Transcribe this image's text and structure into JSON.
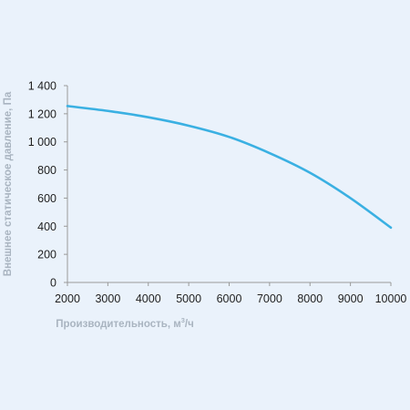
{
  "chart_data": {
    "type": "line",
    "xlabel": "Производительность, м",
    "xlabel_sup": "3",
    "xlabel_suffix": "/ч",
    "ylabel": "Внешнее статическое давление, Па",
    "xlim": [
      2000,
      10000
    ],
    "ylim": [
      0,
      1400
    ],
    "x_ticks": [
      2000,
      3000,
      4000,
      5000,
      6000,
      7000,
      8000,
      9000,
      10000
    ],
    "x_tick_labels": [
      "2000",
      "3000",
      "4000",
      "5000",
      "6000",
      "7000",
      "8000",
      "9000",
      "10000"
    ],
    "y_ticks": [
      0,
      200,
      400,
      600,
      800,
      1000,
      1200,
      1400
    ],
    "y_tick_labels": [
      "0",
      "200",
      "400",
      "600",
      "800",
      "1 000",
      "1 200",
      "1 400"
    ],
    "grid": false,
    "series": [
      {
        "color": "#3ab0e2",
        "x": [
          2000,
          3000,
          4000,
          5000,
          6000,
          7000,
          8000,
          9000,
          10000
        ],
        "y": [
          1255,
          1220,
          1175,
          1115,
          1035,
          920,
          780,
          600,
          390
        ]
      }
    ]
  },
  "colors": {
    "background": "#eaf2fb",
    "axis": "#9a9a9a",
    "axis_title": "#a9b4c0",
    "line": "#3ab0e2"
  }
}
